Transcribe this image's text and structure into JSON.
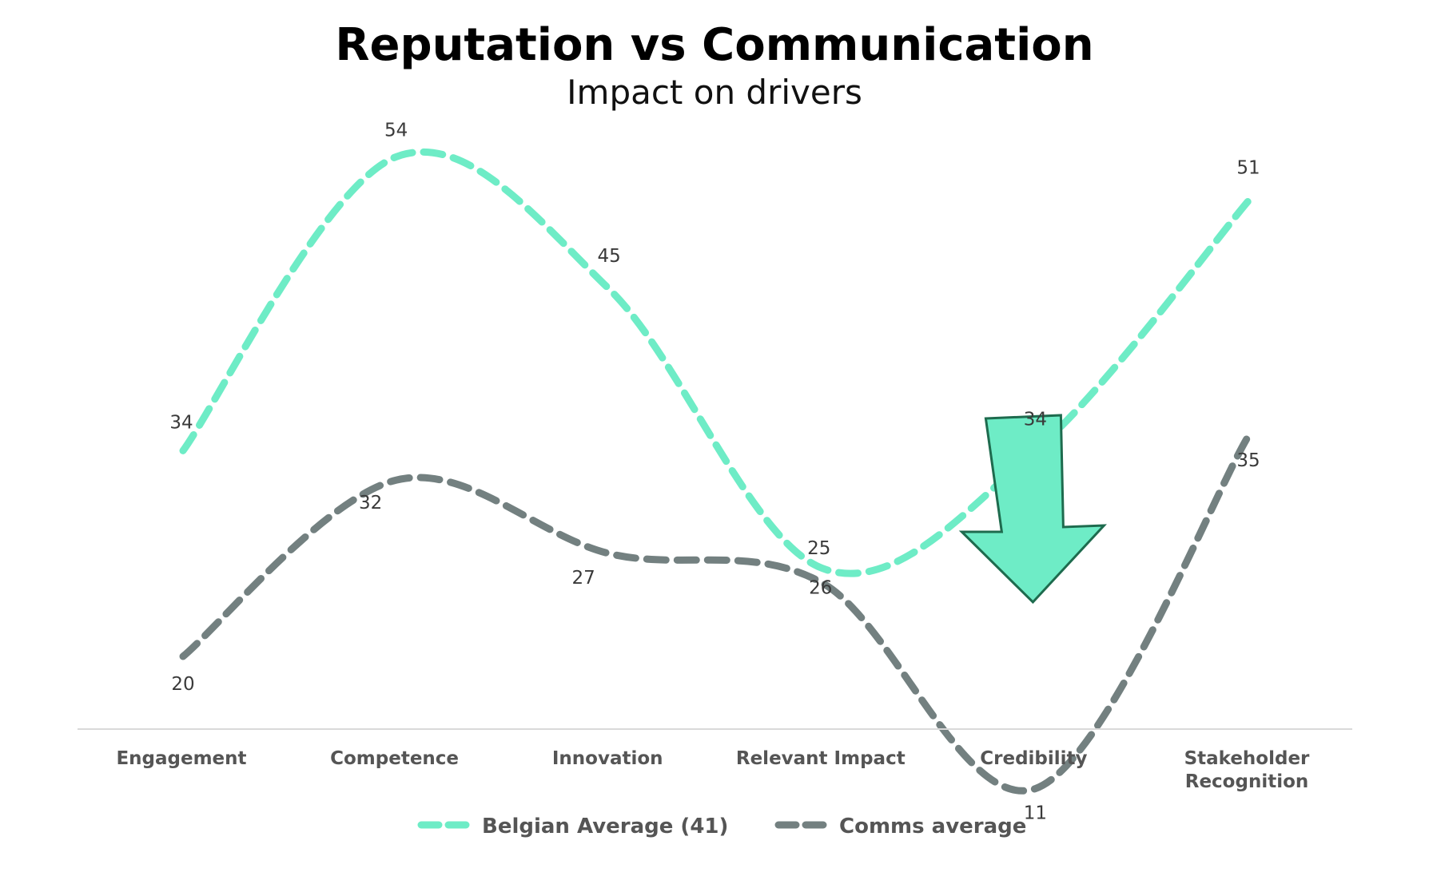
{
  "chart_data": {
    "type": "line",
    "title": "Reputation vs Communication",
    "subtitle": "Impact on drivers",
    "categories": [
      "Engagement",
      "Competence",
      "Innovation",
      "Relevant Impact",
      "Credibility",
      "Stakeholder Recognition"
    ],
    "series": [
      {
        "name": "Belgian Average (41)",
        "color": "#6eecc6",
        "dashed": true,
        "smooth": true,
        "values": [
          34,
          54,
          45,
          26,
          34,
          51
        ]
      },
      {
        "name": "Comms average",
        "color": "#738080",
        "dashed": true,
        "smooth": true,
        "values": [
          20,
          32,
          27,
          25,
          11,
          35
        ]
      }
    ],
    "legend": "bottom",
    "grid": false,
    "annotation": {
      "type": "down-arrow",
      "category": "Credibility",
      "fill": "#6eecc6",
      "stroke": "#1e6b4e"
    }
  }
}
